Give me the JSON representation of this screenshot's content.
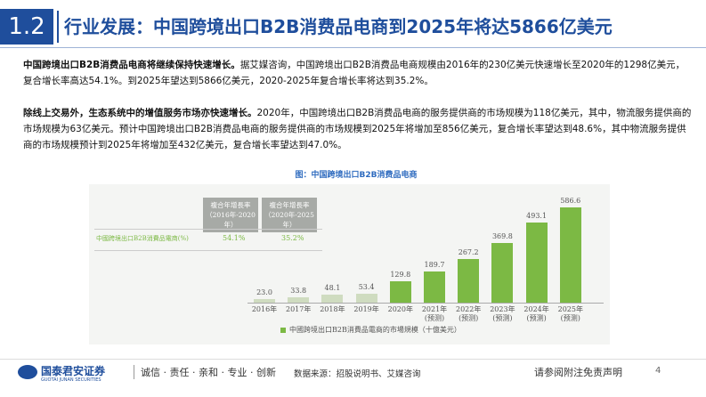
{
  "header": {
    "number": "1.2",
    "title": "行业发展：中国跨境出口B2B消费品电商到2025年将达5866亿美元"
  },
  "paragraphs": [
    {
      "bold": "中国跨境出口B2B消费品电商将继续保持快速增长。",
      "text": "据艾媒咨询，中国跨境出口B2B消费品电商规模由2016年的230亿美元快速增长至2020年的1298亿美元，复合增长率高达54.1%。到2025年望达到5866亿美元，2020-2025年复合增长率将达到35.2%。"
    },
    {
      "bold": "除线上交易外，生态系统中的增值服务市场亦快速增长。",
      "text": "2020年，中国跨境出口B2B消费品电商的服务提供商的市场规模为118亿美元，其中，物流服务提供商的市场规模为63亿美元。预计中国跨境出口B2B消费品电商的服务提供商的市场规模到2025年将增加至856亿美元，复合增长率望达到48.6%，其中物流服务提供商的市场规模预计到2025年将增加至432亿美元，复合增长率望达到47.0%。"
    }
  ],
  "chart_data": {
    "type": "bar",
    "title": "图：中国跨境出口B2B消费品电商",
    "categories": [
      "2016年",
      "2017年",
      "2018年",
      "2019年",
      "2020年",
      "2021年(预测)",
      "2022年(预测)",
      "2023年(预测)",
      "2024年(预测)",
      "2025年(预测)"
    ],
    "series": [
      {
        "name": "中國跨境出口B2B消費品電商的市場規模（十億美元）",
        "color": "#7cb944",
        "values": [
          23,
          33.8,
          48.1,
          53.4,
          129.8,
          189.7,
          267.2,
          369.8,
          493.1,
          586.6
        ],
        "value_labels": [
          "23.0",
          "33.8",
          "48.1",
          "53.4",
          "129.8",
          "189.7",
          "267.2",
          "369.8",
          "493.1",
          "586.6"
        ],
        "colors": [
          "#cfdcc0",
          "#cfdcc0",
          "#cfdcc0",
          "#cfdcc0",
          "#7cb944",
          "#7cb944",
          "#7cb944",
          "#7cb944",
          "#7cb944",
          "#7cb944"
        ]
      }
    ],
    "ylim": [
      0,
      620
    ],
    "table": {
      "headers": [
        "複合年增長率（2016年-2020年）",
        "複合年增長率（2020年-2025年）"
      ],
      "row_label": "中國跨境出口B2B消費品電商(%)",
      "row": [
        "54.1%",
        "35.2%"
      ]
    }
  },
  "source": "数据来源：招股说明书、艾媒咨询",
  "footer": {
    "company": "国泰君安证券",
    "company_en": "GUOTAI JUNAN SECURITIES",
    "slogan": "诚信 · 责任 · 亲和 · 专业 · 创新",
    "disclaimer": "请参阅附注免责声明",
    "page": "4"
  }
}
